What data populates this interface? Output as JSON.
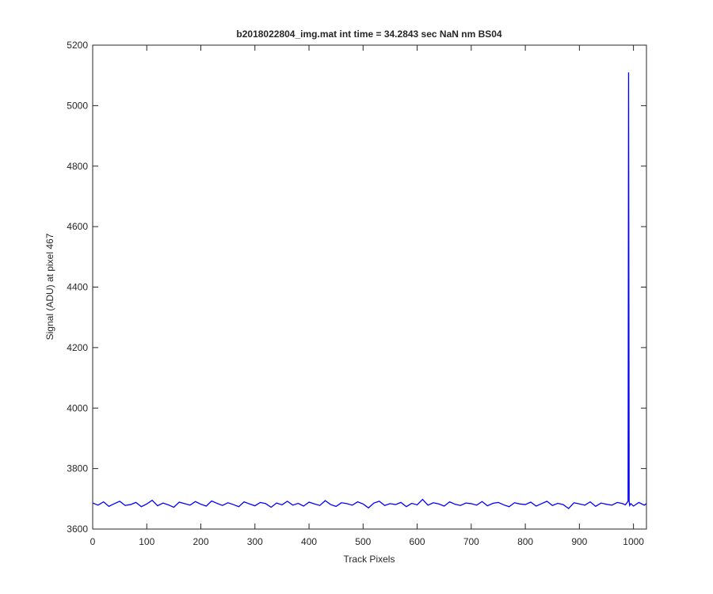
{
  "chart_data": {
    "type": "line",
    "title": "b2018022804_img.mat int time = 34.2843 sec  NaN nm BS04",
    "x_label": "Track Pixels",
    "y_label": "Signal (ADU) at pixel 467",
    "color": "#0000ff",
    "x": [
      0,
      10,
      20,
      30,
      40,
      50,
      60,
      70,
      80,
      90,
      100,
      110,
      120,
      130,
      140,
      150,
      160,
      170,
      180,
      190,
      200,
      210,
      220,
      230,
      240,
      250,
      260,
      270,
      280,
      290,
      300,
      310,
      320,
      330,
      340,
      350,
      360,
      370,
      380,
      390,
      400,
      410,
      420,
      430,
      440,
      450,
      460,
      470,
      480,
      490,
      500,
      510,
      520,
      530,
      540,
      550,
      560,
      570,
      580,
      590,
      600,
      610,
      620,
      630,
      640,
      650,
      660,
      670,
      680,
      690,
      700,
      710,
      720,
      730,
      740,
      750,
      760,
      770,
      780,
      790,
      800,
      810,
      820,
      830,
      840,
      850,
      860,
      870,
      880,
      890,
      900,
      910,
      920,
      930,
      940,
      950,
      960,
      970,
      980,
      985,
      990,
      991,
      992,
      993,
      995,
      1000,
      1010,
      1020,
      1024
    ],
    "values": [
      3686,
      3679,
      3690,
      3675,
      3684,
      3692,
      3678,
      3681,
      3688,
      3674,
      3683,
      3695,
      3677,
      3686,
      3680,
      3672,
      3689,
      3684,
      3679,
      3691,
      3682,
      3676,
      3693,
      3685,
      3678,
      3687,
      3681,
      3674,
      3690,
      3683,
      3677,
      3688,
      3684,
      3672,
      3686,
      3680,
      3692,
      3679,
      3685,
      3676,
      3689,
      3683,
      3678,
      3694,
      3681,
      3675,
      3687,
      3684,
      3679,
      3690,
      3683,
      3670,
      3686,
      3692,
      3678,
      3684,
      3681,
      3688,
      3674,
      3685,
      3680,
      3698,
      3679,
      3687,
      3683,
      3676,
      3690,
      3682,
      3678,
      3686,
      3684,
      3679,
      3691,
      3677,
      3685,
      3688,
      3680,
      3674,
      3687,
      3683,
      3681,
      3689,
      3676,
      3684,
      3692,
      3678,
      3685,
      3681,
      3668,
      3687,
      3683,
      3679,
      3690,
      3675,
      3686,
      3682,
      3679,
      3688,
      3684,
      3680,
      3692,
      5110,
      3690,
      3678,
      3684,
      3676,
      3688,
      3679,
      3684
    ],
    "xlim": [
      0,
      1024
    ],
    "xticks": [
      0,
      100,
      200,
      300,
      400,
      500,
      600,
      700,
      800,
      900,
      1000
    ],
    "ylim": [
      3600,
      5200
    ],
    "yticks": [
      3600,
      3800,
      4000,
      4200,
      4400,
      4600,
      4800,
      5000,
      5200
    ]
  }
}
